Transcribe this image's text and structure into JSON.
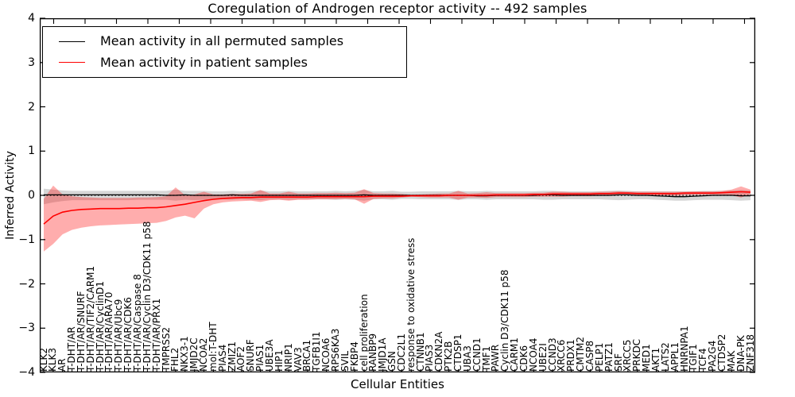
{
  "chart_data": {
    "type": "line",
    "title": "Coregulation of Androgen receptor activity -- 492 samples",
    "xlabel": "Cellular Entities",
    "ylabel": "Inferred Activity",
    "ylim": [
      -4,
      4
    ],
    "yticks": [
      4,
      3,
      2,
      1,
      0,
      -1,
      -2,
      -3,
      -4
    ],
    "ytick_labels": [
      "4",
      "3",
      "2",
      "1",
      "0",
      "−1",
      "−2",
      "−3",
      "−4"
    ],
    "grid": false,
    "legend_position": "upper left",
    "zero_line": {
      "value": 0,
      "style": "dotted",
      "color": "#000000"
    },
    "categories": [
      "KLK2",
      "KLK3",
      "AR",
      "T-DHT/AR",
      "T-DHT/AR/SNURF",
      "T-DHT/AR/TIF2/CARM1",
      "T-DHT/AR/CyclinD1",
      "T-DHT/AR/ARA70",
      "T-DHT/AR/Ubc9",
      "T-DHT/AR/CDK6",
      "T-DHT/AR/Caspase 8",
      "T-DHT/AR/Cyclin D3/CDK11 p58",
      "T-DHT/AR/PRX1",
      "TMPRSS2",
      "FHL2",
      "NKX3-1",
      "JMJD2C",
      "NCOA2",
      "mol:T-DHT",
      "PIAS4",
      "ZMIZ1",
      "AOF2",
      "SNURF",
      "PIAS1",
      "UBE3A",
      "HIP1",
      "NRIP1",
      "VAV3",
      "BRCA1",
      "TGFB1I1",
      "NCOA6",
      "RPS6KA3",
      "SVIL",
      "FKBP4",
      "cell proliferation",
      "RANBP9",
      "JMJD1A",
      "GSN",
      "CDC2L1",
      "response to oxidative stress",
      "CTNNB1",
      "PIAS3",
      "CDKN2A",
      "PTK2B",
      "CTDSP1",
      "UBA3",
      "CCND1",
      "TMF1",
      "PAWR",
      "Cyclin D3/CDK11 p58",
      "CARM1",
      "CDK6",
      "NCOA4",
      "UBE2I",
      "CCND3",
      "XRCC6",
      "PRDX1",
      "CMTM2",
      "CASP8",
      "PELP1",
      "PATZ1",
      "SRF",
      "XRCC5",
      "PRKDC",
      "MED1",
      "AKT1",
      "LATS2",
      "APPL1",
      "HNRNPA1",
      "TGIF1",
      "TCF4",
      "PA2G4",
      "CTDSP2",
      "MAK",
      "DNA-PK",
      "ZNF318"
    ],
    "series": [
      {
        "name": "Mean activity in all permuted samples",
        "color": "#000000",
        "band_color": "rgba(0,0,0,0.16)",
        "values": [
          0.01,
          0.01,
          0.01,
          0.01,
          0.01,
          0.01,
          0.01,
          0.01,
          0.01,
          0.01,
          0.01,
          0.01,
          0.01,
          0.0,
          0.0,
          0.01,
          0.0,
          0.0,
          0.0,
          0.0,
          0.01,
          0.0,
          0.0,
          0.0,
          0.0,
          0.0,
          0.0,
          0.0,
          0.0,
          0.0,
          0.0,
          0.0,
          0.0,
          0.0,
          0.01,
          0.0,
          0.0,
          0.0,
          0.0,
          0.0,
          0.0,
          0.0,
          0.0,
          0.0,
          0.0,
          0.0,
          -0.01,
          -0.01,
          0.0,
          0.0,
          0.0,
          0.0,
          0.0,
          0.01,
          0.01,
          0.0,
          0.0,
          0.0,
          0.0,
          0.0,
          0.0,
          0.01,
          0.01,
          0.0,
          0.0,
          -0.01,
          -0.02,
          -0.03,
          -0.03,
          -0.02,
          -0.01,
          0.0,
          0.0,
          0.0,
          -0.01,
          -0.01
        ],
        "band_upper": [
          0.15,
          0.13,
          0.11,
          0.1,
          0.1,
          0.1,
          0.1,
          0.1,
          0.1,
          0.1,
          0.1,
          0.1,
          0.1,
          0.1,
          0.13,
          0.1,
          0.1,
          0.1,
          0.09,
          0.09,
          0.1,
          0.09,
          0.1,
          0.11,
          0.09,
          0.09,
          0.1,
          0.09,
          0.09,
          0.09,
          0.09,
          0.1,
          0.09,
          0.1,
          0.12,
          0.09,
          0.09,
          0.1,
          0.08,
          0.08,
          0.09,
          0.09,
          0.09,
          0.09,
          0.1,
          0.09,
          0.09,
          0.1,
          0.09,
          0.09,
          0.09,
          0.09,
          0.09,
          0.1,
          0.1,
          0.09,
          0.09,
          0.09,
          0.09,
          0.09,
          0.1,
          0.11,
          0.1,
          0.09,
          0.09,
          0.09,
          0.09,
          0.09,
          0.09,
          0.09,
          0.1,
          0.1,
          0.1,
          0.11,
          0.12,
          0.11
        ],
        "band_lower": [
          -0.2,
          -0.16,
          -0.13,
          -0.11,
          -0.11,
          -0.11,
          -0.11,
          -0.11,
          -0.11,
          -0.11,
          -0.1,
          -0.1,
          -0.1,
          -0.1,
          -0.12,
          -0.1,
          -0.11,
          -0.1,
          -0.1,
          -0.09,
          -0.1,
          -0.09,
          -0.1,
          -0.11,
          -0.09,
          -0.09,
          -0.1,
          -0.09,
          -0.09,
          -0.09,
          -0.09,
          -0.1,
          -0.09,
          -0.1,
          -0.12,
          -0.09,
          -0.09,
          -0.1,
          -0.08,
          -0.08,
          -0.09,
          -0.09,
          -0.09,
          -0.09,
          -0.1,
          -0.09,
          -0.09,
          -0.1,
          -0.09,
          -0.09,
          -0.09,
          -0.09,
          -0.09,
          -0.1,
          -0.1,
          -0.09,
          -0.09,
          -0.09,
          -0.09,
          -0.09,
          -0.1,
          -0.11,
          -0.1,
          -0.09,
          -0.09,
          -0.1,
          -0.11,
          -0.12,
          -0.12,
          -0.11,
          -0.1,
          -0.1,
          -0.1,
          -0.11,
          -0.12,
          -0.11
        ]
      },
      {
        "name": "Mean activity in patient samples",
        "color": "#ff0000",
        "band_color": "rgba(255,0,0,0.32)",
        "values": [
          -0.65,
          -0.47,
          -0.38,
          -0.34,
          -0.32,
          -0.31,
          -0.3,
          -0.3,
          -0.3,
          -0.29,
          -0.29,
          -0.28,
          -0.28,
          -0.26,
          -0.23,
          -0.2,
          -0.16,
          -0.12,
          -0.09,
          -0.07,
          -0.06,
          -0.05,
          -0.05,
          -0.04,
          -0.04,
          -0.04,
          -0.04,
          -0.04,
          -0.04,
          -0.03,
          -0.03,
          -0.03,
          -0.03,
          -0.03,
          -0.03,
          -0.02,
          -0.02,
          -0.02,
          -0.02,
          -0.01,
          -0.01,
          -0.01,
          -0.01,
          0.0,
          0.0,
          0.0,
          0.0,
          0.0,
          0.01,
          0.01,
          0.01,
          0.01,
          0.02,
          0.02,
          0.03,
          0.03,
          0.03,
          0.03,
          0.03,
          0.04,
          0.04,
          0.05,
          0.05,
          0.04,
          0.04,
          0.04,
          0.04,
          0.04,
          0.05,
          0.05,
          0.05,
          0.05,
          0.06,
          0.07,
          0.08,
          0.07
        ],
        "band_upper": [
          -0.08,
          0.22,
          0.02,
          -0.02,
          -0.04,
          -0.05,
          -0.06,
          -0.06,
          -0.06,
          -0.06,
          -0.05,
          -0.05,
          -0.04,
          -0.02,
          0.18,
          0.0,
          0.02,
          0.08,
          0.02,
          0.02,
          0.03,
          0.03,
          0.04,
          0.12,
          0.04,
          0.04,
          0.08,
          0.04,
          0.04,
          0.05,
          0.05,
          0.06,
          0.05,
          0.06,
          0.14,
          0.05,
          0.04,
          0.04,
          0.03,
          0.01,
          0.02,
          0.03,
          0.04,
          0.04,
          0.1,
          0.04,
          0.05,
          0.07,
          0.05,
          0.05,
          0.05,
          0.05,
          0.06,
          0.06,
          0.08,
          0.08,
          0.07,
          0.07,
          0.07,
          0.08,
          0.08,
          0.09,
          0.08,
          0.08,
          0.08,
          0.08,
          0.08,
          0.08,
          0.08,
          0.09,
          0.09,
          0.09,
          0.1,
          0.13,
          0.2,
          0.13
        ],
        "band_lower": [
          -1.27,
          -1.1,
          -0.88,
          -0.78,
          -0.73,
          -0.7,
          -0.68,
          -0.67,
          -0.66,
          -0.65,
          -0.64,
          -0.63,
          -0.62,
          -0.58,
          -0.5,
          -0.46,
          -0.52,
          -0.3,
          -0.2,
          -0.16,
          -0.14,
          -0.13,
          -0.12,
          -0.15,
          -0.11,
          -0.1,
          -0.12,
          -0.1,
          -0.1,
          -0.09,
          -0.09,
          -0.09,
          -0.08,
          -0.09,
          -0.19,
          -0.08,
          -0.07,
          -0.07,
          -0.05,
          -0.03,
          -0.04,
          -0.05,
          -0.05,
          -0.05,
          -0.1,
          -0.05,
          -0.05,
          -0.06,
          -0.04,
          -0.04,
          -0.04,
          -0.04,
          -0.03,
          -0.03,
          -0.03,
          -0.03,
          -0.02,
          -0.02,
          -0.02,
          -0.01,
          -0.01,
          0.0,
          0.0,
          0.0,
          0.0,
          0.0,
          0.0,
          -0.01,
          0.0,
          0.01,
          0.01,
          0.01,
          0.01,
          0.0,
          -0.05,
          0.02
        ]
      }
    ]
  }
}
